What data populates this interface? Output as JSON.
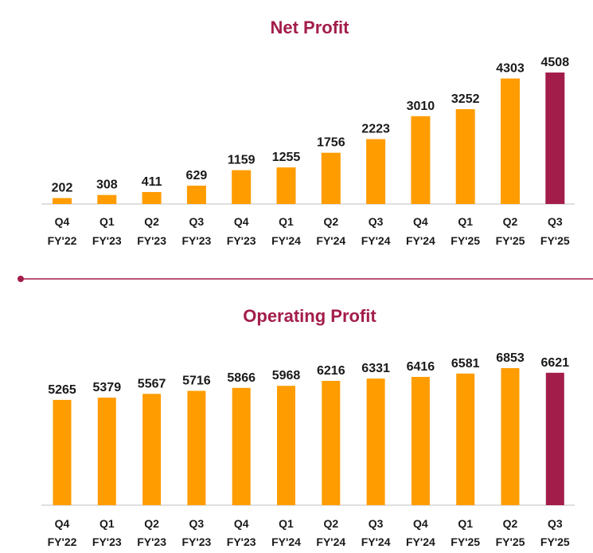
{
  "colors": {
    "bar": "#FF9C00",
    "highlight": "#A31D4B",
    "title": "#A31D4B",
    "axis": "#BFBFBF",
    "divider": "#A31D4B"
  },
  "chart_data": [
    {
      "type": "bar",
      "title": "Net Profit",
      "categories": [
        [
          "Q4",
          "FY'22"
        ],
        [
          "Q1",
          "FY'23"
        ],
        [
          "Q2",
          "FY'23"
        ],
        [
          "Q3",
          "FY'23"
        ],
        [
          "Q4",
          "FY'23"
        ],
        [
          "Q1",
          "FY'24"
        ],
        [
          "Q2",
          "FY'24"
        ],
        [
          "Q3",
          "FY'24"
        ],
        [
          "Q4",
          "FY'24"
        ],
        [
          "Q1",
          "FY'25"
        ],
        [
          "Q2",
          "FY'25"
        ],
        [
          "Q3",
          "FY'25"
        ]
      ],
      "values": [
        202,
        308,
        411,
        629,
        1159,
        1255,
        1756,
        2223,
        3010,
        3252,
        4303,
        4508
      ],
      "highlight_index": 11,
      "ylim": [
        0,
        4508
      ],
      "grid": false,
      "xlabel": "",
      "ylabel": ""
    },
    {
      "type": "bar",
      "title": "Operating Profit",
      "categories": [
        [
          "Q4",
          "FY'22"
        ],
        [
          "Q1",
          "FY'23"
        ],
        [
          "Q2",
          "FY'23"
        ],
        [
          "Q3",
          "FY'23"
        ],
        [
          "Q4",
          "FY'23"
        ],
        [
          "Q1",
          "FY'24"
        ],
        [
          "Q2",
          "FY'24"
        ],
        [
          "Q3",
          "FY'24"
        ],
        [
          "Q4",
          "FY'24"
        ],
        [
          "Q1",
          "FY'25"
        ],
        [
          "Q2",
          "FY'25"
        ],
        [
          "Q3",
          "FY'25"
        ]
      ],
      "values": [
        5265,
        5379,
        5567,
        5716,
        5866,
        5968,
        6216,
        6331,
        6416,
        6581,
        6853,
        6621
      ],
      "highlight_index": 11,
      "ylim": [
        0,
        6853
      ],
      "grid": false,
      "xlabel": "",
      "ylabel": ""
    }
  ]
}
